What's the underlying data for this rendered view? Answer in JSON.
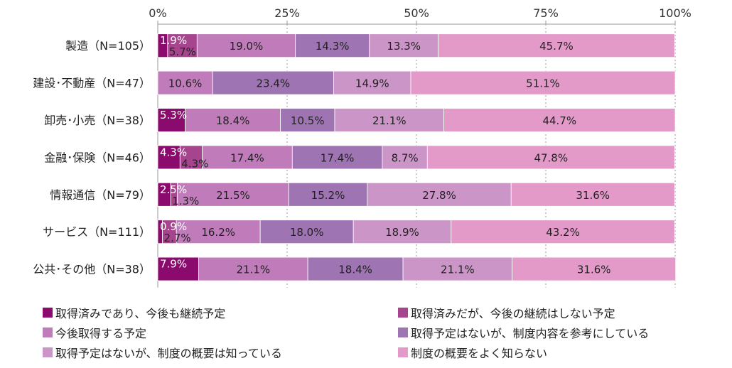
{
  "chart_data": {
    "type": "bar",
    "orientation": "horizontal",
    "stacked": true,
    "percent": true,
    "title": "",
    "xlabel": "",
    "ylabel": "",
    "xlim": [
      0,
      100
    ],
    "x_ticks": [
      "0%",
      "25%",
      "50%",
      "75%",
      "100%"
    ],
    "grid": true,
    "legend_position": "bottom",
    "categories": [
      "製造（N=105）",
      "建設･不動産（N=47）",
      "卸売･小売（N=38）",
      "金融･保険（N=46）",
      "情報通信（N=79）",
      "サービス（N=111）",
      "公共･その他（N=38）"
    ],
    "series": [
      {
        "name": "取得済みであり、今後も継続予定",
        "color": "#8b0a6e",
        "values": [
          1.9,
          0,
          5.3,
          4.3,
          2.5,
          0.9,
          7.9
        ],
        "labels": [
          "1.9%",
          "",
          "5.3%",
          "4.3%",
          "2.5%",
          "0.9%",
          "7.9%"
        ]
      },
      {
        "name": "取得済みだが、今後の継続はしない予定",
        "color": "#a6458e",
        "values": [
          5.7,
          0,
          0,
          4.3,
          1.3,
          2.7,
          0
        ],
        "labels": [
          "5.7%",
          "",
          "",
          "4.3%",
          "1.3%",
          "2.7%",
          ""
        ]
      },
      {
        "name": "今後取得する予定",
        "color": "#c07cba",
        "values": [
          19.0,
          10.6,
          18.4,
          17.4,
          21.5,
          16.2,
          21.1
        ],
        "labels": [
          "19.0%",
          "10.6%",
          "18.4%",
          "17.4%",
          "21.5%",
          "16.2%",
          "21.1%"
        ]
      },
      {
        "name": "取得予定はないが、制度内容を参考にしている",
        "color": "#9f74b2",
        "values": [
          14.3,
          23.4,
          10.5,
          17.4,
          15.2,
          18.0,
          18.4
        ],
        "labels": [
          "14.3%",
          "23.4%",
          "10.5%",
          "17.4%",
          "15.2%",
          "18.0%",
          "18.4%"
        ]
      },
      {
        "name": "取得予定はないが、制度の概要は知っている",
        "color": "#cc95c8",
        "values": [
          13.3,
          14.9,
          21.1,
          8.7,
          27.8,
          18.9,
          21.1
        ],
        "labels": [
          "13.3%",
          "14.9%",
          "21.1%",
          "8.7%",
          "27.8%",
          "18.9%",
          "21.1%"
        ]
      },
      {
        "name": "制度の概要をよく知らない",
        "color": "#e39ac8",
        "values": [
          45.7,
          51.1,
          44.7,
          47.8,
          31.6,
          43.2,
          31.6
        ],
        "labels": [
          "45.7%",
          "51.1%",
          "44.7%",
          "47.8%",
          "31.6%",
          "43.2%",
          "31.6%"
        ]
      }
    ]
  }
}
